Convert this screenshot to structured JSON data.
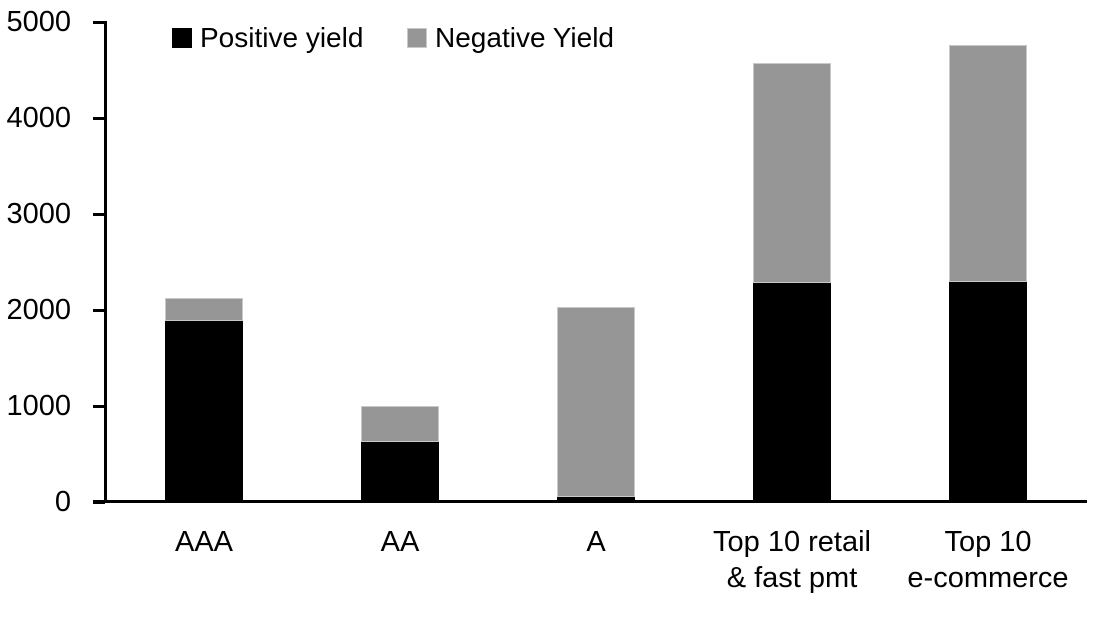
{
  "chart_data": {
    "type": "bar",
    "stacked": true,
    "title": "",
    "xlabel": "",
    "ylabel": "",
    "categories": [
      "AAA",
      "AA",
      "A",
      "Top 10 retail\n& fast pmt",
      "Top 10\ne-commerce"
    ],
    "series": [
      {
        "name": "Positive yield",
        "color": "#000000",
        "values": [
          1890,
          620,
          50,
          2280,
          2290
        ]
      },
      {
        "name": "Negative Yield",
        "color": "#969696",
        "values": [
          230,
          380,
          1980,
          2290,
          2470
        ]
      }
    ],
    "totals": [
      2120,
      1000,
      2030,
      4570,
      4760
    ],
    "ylim": [
      0,
      5000
    ],
    "yticks": [
      0,
      1000,
      2000,
      3000,
      4000,
      5000
    ],
    "grid": false,
    "legend_position": "top",
    "colors": {
      "positive": "#000000",
      "negative": "#969696",
      "axis": "#000000",
      "background": "#ffffff"
    }
  }
}
